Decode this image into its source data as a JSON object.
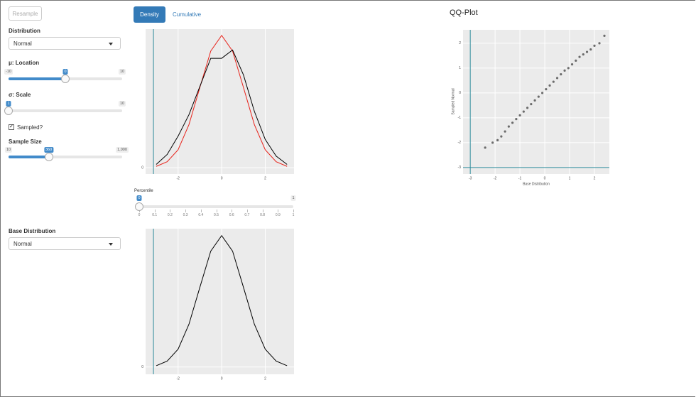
{
  "sidebar": {
    "resample": "Resample",
    "distribution": {
      "label": "Distribution",
      "selected": "Normal"
    },
    "location": {
      "label": "μ: Location",
      "min": -10,
      "max": 10,
      "value": 0
    },
    "scale": {
      "label": "σ: Scale",
      "min": 1,
      "max": 10,
      "value": 1
    },
    "sampled": {
      "label": "Sampled?",
      "checked": true
    },
    "sample_size": {
      "label": "Sample Size",
      "min": 10,
      "max": {
        "value": 1000,
        "label": "1,000"
      },
      "value": 360
    },
    "base_distribution": {
      "label": "Base Distribution",
      "selected": "Normal"
    }
  },
  "tabs": {
    "items": [
      "Density",
      "Cumulative"
    ],
    "active": 0
  },
  "percentile": {
    "label": "Percentile",
    "min": 0,
    "max": 1,
    "value": 0,
    "ticks": [
      0,
      0.1,
      0.2,
      0.3,
      0.4,
      0.5,
      0.6,
      0.7,
      0.8,
      0.9,
      1
    ]
  },
  "plots": [
    {
      "type": "line",
      "xlim": [
        -3.49,
        3.32
      ],
      "ylim": [
        -0.019,
        0.418
      ],
      "xticks": [
        -2,
        0,
        2
      ],
      "yticks": [
        0
      ],
      "vline": -3.13,
      "x": [
        -3,
        -2.5,
        -2,
        -1.5,
        -1,
        -0.5,
        0,
        0.5,
        1,
        1.5,
        2,
        2.5,
        3
      ],
      "series": [
        {
          "color": "#e8221a",
          "values": [
            0.004,
            0.018,
            0.054,
            0.13,
            0.242,
            0.352,
            0.399,
            0.352,
            0.242,
            0.13,
            0.054,
            0.018,
            0.004
          ]
        },
        {
          "color": "#000000",
          "values": [
            0.01,
            0.04,
            0.095,
            0.16,
            0.245,
            0.33,
            0.33,
            0.355,
            0.28,
            0.17,
            0.085,
            0.035,
            0.01
          ]
        }
      ]
    },
    {
      "type": "line",
      "xlim": [
        -3.49,
        3.32
      ],
      "ylim": [
        -0.022,
        0.42
      ],
      "xticks": [
        -2,
        0,
        2
      ],
      "yticks": [
        0
      ],
      "vline": -3.13,
      "x": [
        -3,
        -2.5,
        -2,
        -1.5,
        -1,
        -0.5,
        0,
        0.5,
        1,
        1.5,
        2,
        2.5,
        3
      ],
      "series": [
        {
          "color": "#000000",
          "values": [
            0.004,
            0.018,
            0.054,
            0.13,
            0.242,
            0.352,
            0.399,
            0.352,
            0.242,
            0.13,
            0.054,
            0.018,
            0.004
          ]
        }
      ]
    },
    {
      "type": "scatter",
      "title": "QQ-Plot",
      "xlabel": "Base Distribution",
      "ylabel": "Sampled Normal",
      "xlim": [
        -3.29,
        2.6
      ],
      "ylim": [
        -3.26,
        2.54
      ],
      "xticks": [
        -3,
        -2,
        -1,
        0,
        1,
        2
      ],
      "yticks": [
        -3,
        -2,
        -1,
        0,
        1,
        2
      ],
      "vline": -3,
      "hline": -3,
      "color": "#555555",
      "x": [
        -2.4,
        -2.1,
        -1.9,
        -1.75,
        -1.6,
        -1.45,
        -1.3,
        -1.15,
        -1.0,
        -0.85,
        -0.7,
        -0.55,
        -0.4,
        -0.25,
        -0.1,
        0.05,
        0.2,
        0.35,
        0.5,
        0.65,
        0.8,
        0.95,
        1.1,
        1.25,
        1.4,
        1.55,
        1.7,
        1.85,
        2.0,
        2.2,
        2.4
      ],
      "values": [
        -2.2,
        -2.0,
        -1.9,
        -1.75,
        -1.55,
        -1.35,
        -1.2,
        -1.05,
        -0.9,
        -0.75,
        -0.6,
        -0.45,
        -0.3,
        -0.15,
        0.0,
        0.15,
        0.3,
        0.45,
        0.6,
        0.75,
        0.9,
        1.0,
        1.15,
        1.3,
        1.45,
        1.55,
        1.65,
        1.75,
        1.9,
        2.0,
        2.3
      ]
    }
  ]
}
